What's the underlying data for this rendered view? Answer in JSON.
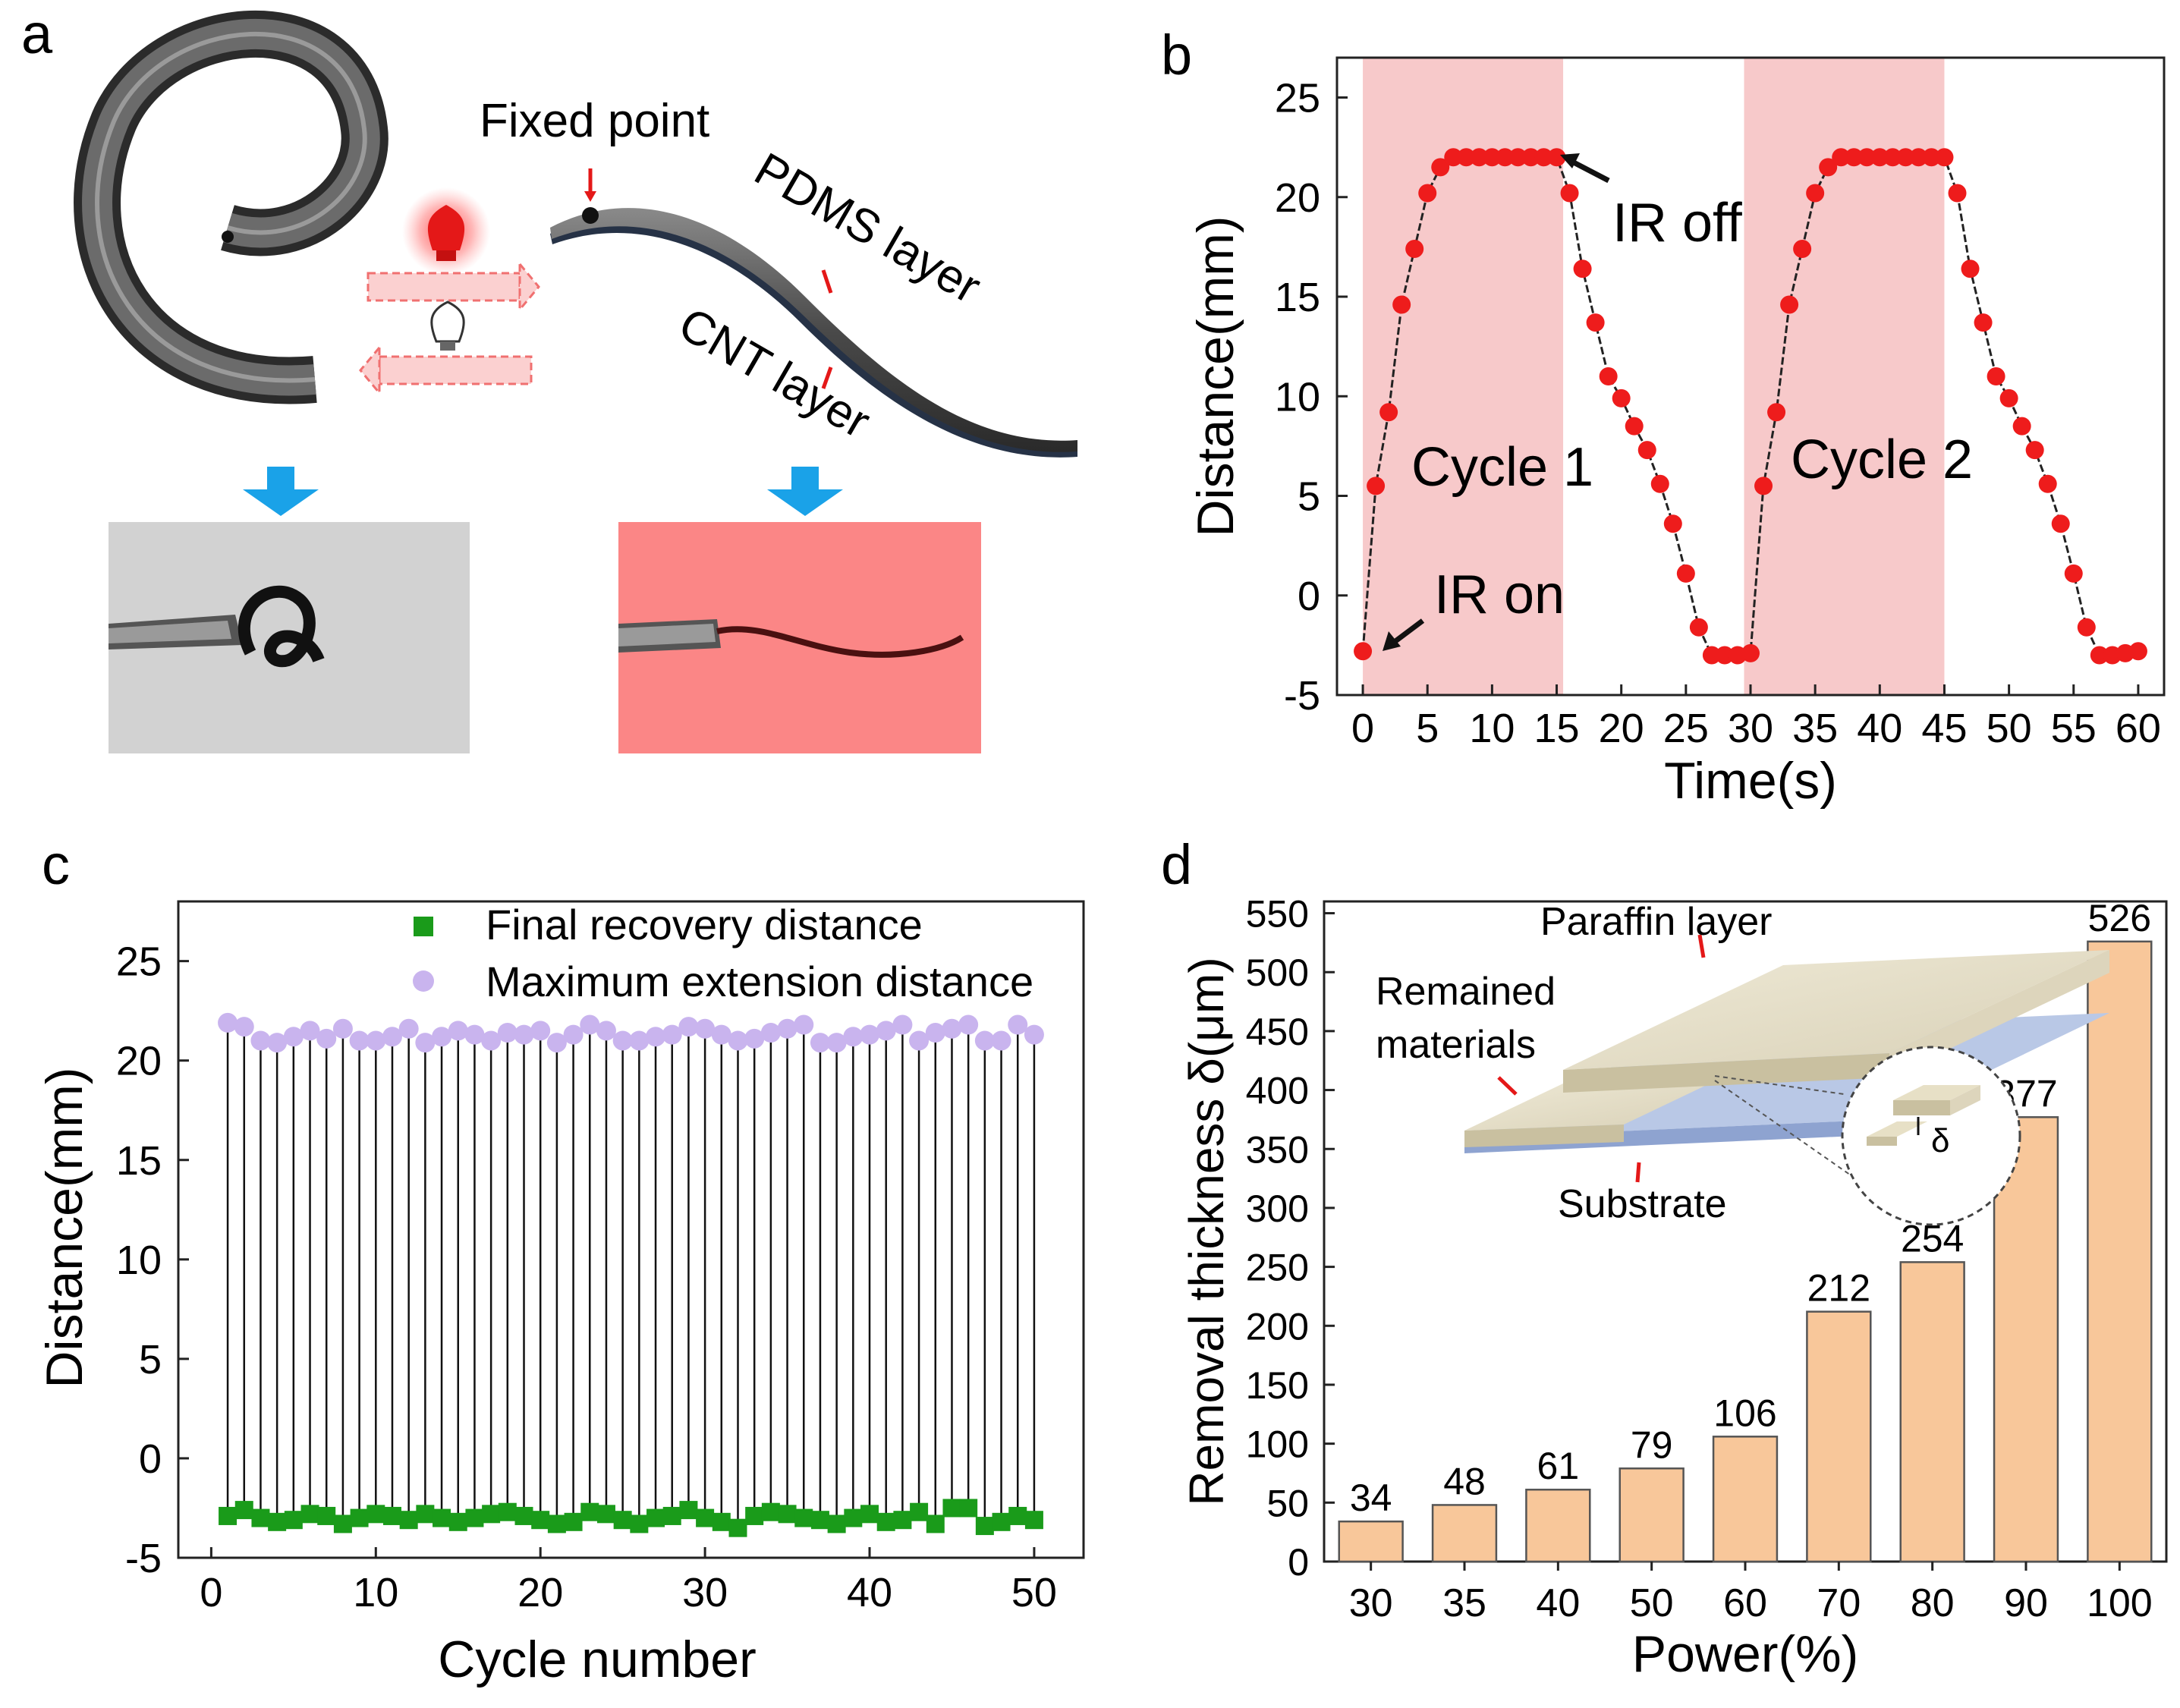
{
  "panel_labels": {
    "a": "a",
    "b": "b",
    "c": "c",
    "d": "d"
  },
  "colors": {
    "red": "#ee1c1c",
    "pink_band": "#f7c9ca",
    "green": "#1a9b1a",
    "lavender": "#c9b4ee",
    "bar_fill": "#f8c79a",
    "photo_gray": "#d2d2d2",
    "photo_red": "#fb8686",
    "blue_arrow": "#1aa2e8"
  },
  "schematic": {
    "fixed_point": "Fixed point",
    "pdms_layer": "PDMS layer",
    "cnt_layer": "CNT layer"
  },
  "chart_data": [
    {
      "id": "b",
      "type": "line",
      "xlabel": "Time(s)",
      "ylabel": "Distance(mm)",
      "xlim": [
        -2,
        62
      ],
      "ylim": [
        -5,
        27
      ],
      "xticks": [
        0,
        5,
        10,
        15,
        20,
        25,
        30,
        35,
        40,
        45,
        50,
        55,
        60
      ],
      "yticks": [
        -5,
        0,
        5,
        10,
        15,
        20,
        25
      ],
      "shaded_ranges": [
        [
          0,
          15.5
        ],
        [
          29.5,
          45
        ]
      ],
      "annotations": {
        "cycle1": "Cycle 1",
        "cycle2": "Cycle 2",
        "ir_on": "IR on",
        "ir_off": "IR off"
      },
      "x": [
        0,
        1,
        2,
        3,
        4,
        5,
        6,
        7,
        8,
        9,
        10,
        11,
        12,
        13,
        14,
        15,
        16,
        17,
        18,
        19,
        20,
        21,
        22,
        23,
        24,
        25,
        26,
        27,
        28,
        29,
        30,
        31,
        32,
        33,
        34,
        35,
        36,
        37,
        38,
        39,
        40,
        41,
        42,
        43,
        44,
        45,
        46,
        47,
        48,
        49,
        50,
        51,
        52,
        53,
        54,
        55,
        56,
        57,
        58,
        59,
        60
      ],
      "y": [
        -2.8,
        5.5,
        9.2,
        14.6,
        17.4,
        20.2,
        21.5,
        22,
        22,
        22,
        22,
        22,
        22,
        22,
        22,
        22,
        20.2,
        16.4,
        13.7,
        11,
        9.9,
        8.5,
        7.3,
        5.6,
        3.6,
        1.1,
        -1.6,
        -3,
        -3,
        -3,
        -2.9,
        5.5,
        9.2,
        14.6,
        17.4,
        20.2,
        21.5,
        22,
        22,
        22,
        22,
        22,
        22,
        22,
        22,
        22,
        20.2,
        16.4,
        13.7,
        11,
        9.9,
        8.5,
        7.3,
        5.6,
        3.6,
        1.1,
        -1.6,
        -3,
        -3,
        -2.9,
        -2.8
      ]
    },
    {
      "id": "c",
      "type": "scatter",
      "xlabel": "Cycle number",
      "ylabel": "Distance(mm)",
      "xlim": [
        -2,
        53
      ],
      "ylim": [
        -5,
        28
      ],
      "xticks": [
        0,
        10,
        20,
        30,
        40,
        50
      ],
      "yticks": [
        -5,
        0,
        5,
        10,
        15,
        20,
        25
      ],
      "legend_position": "top-right",
      "series": [
        {
          "name": "Final recovery distance",
          "marker": "square",
          "values": [
            -2.9,
            -2.6,
            -3.0,
            -3.2,
            -3.1,
            -2.8,
            -2.9,
            -3.3,
            -3.0,
            -2.8,
            -2.9,
            -3.1,
            -2.8,
            -3.0,
            -3.2,
            -3.0,
            -2.8,
            -2.7,
            -2.9,
            -3.1,
            -3.3,
            -3.2,
            -2.7,
            -2.8,
            -3.1,
            -3.3,
            -3.0,
            -2.9,
            -2.6,
            -3.0,
            -3.2,
            -3.5,
            -2.9,
            -2.7,
            -2.8,
            -3.0,
            -3.1,
            -3.3,
            -3.0,
            -2.8,
            -3.2,
            -3.1,
            -2.7,
            -3.3,
            -2.5,
            -2.5,
            -3.4,
            -3.2,
            -2.9,
            -3.1
          ]
        },
        {
          "name": "Maximum extension distance",
          "marker": "circle",
          "values": [
            21.9,
            21.7,
            21.0,
            20.9,
            21.2,
            21.5,
            21.1,
            21.6,
            21.0,
            21.0,
            21.2,
            21.6,
            20.9,
            21.2,
            21.5,
            21.3,
            21.0,
            21.4,
            21.3,
            21.5,
            20.9,
            21.3,
            21.8,
            21.5,
            21.0,
            21.0,
            21.2,
            21.3,
            21.7,
            21.6,
            21.3,
            21.0,
            21.1,
            21.4,
            21.6,
            21.8,
            20.9,
            20.9,
            21.2,
            21.3,
            21.5,
            21.8,
            21.0,
            21.4,
            21.6,
            21.8,
            21.0,
            21.0,
            21.8,
            21.3
          ]
        }
      ]
    },
    {
      "id": "d",
      "type": "bar",
      "xlabel": "Power(%)",
      "ylabel": "Removal thickness δ(μm)",
      "ylim": [
        0,
        560
      ],
      "yticks": [
        0,
        50,
        100,
        150,
        200,
        250,
        300,
        350,
        400,
        450,
        500,
        550
      ],
      "categories": [
        "30",
        "35",
        "40",
        "50",
        "60",
        "70",
        "80",
        "90",
        "100"
      ],
      "values": [
        34,
        48,
        61,
        79,
        106,
        212,
        254,
        377,
        526
      ],
      "value_labels": [
        "34",
        "48",
        "61",
        "79",
        "106",
        "212",
        "254",
        "377",
        "526"
      ],
      "inset": {
        "paraffin": "Paraffin layer",
        "remained_line1": "Remained",
        "remained_line2": "materials",
        "substrate": "Substrate",
        "delta": "δ"
      }
    }
  ]
}
